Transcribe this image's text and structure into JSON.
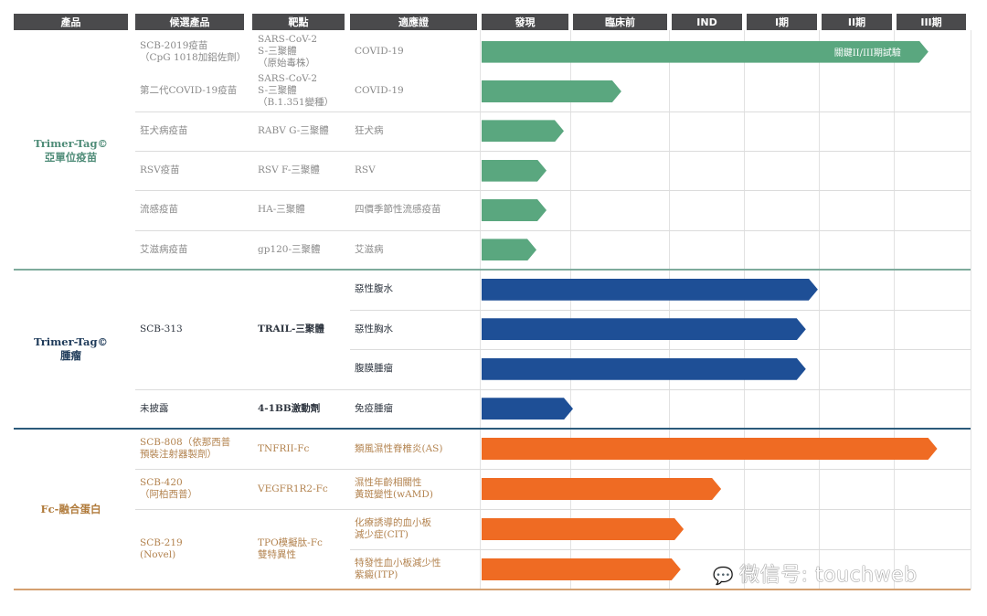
{
  "chart_data": {
    "type": "bar",
    "orientation": "horizontal",
    "headers": {
      "product": "產品",
      "candidate": "候選產品",
      "target": "靶點",
      "indication": "適應證",
      "stages": [
        "發現",
        "臨床前",
        "IND",
        "I期",
        "II期",
        "III期"
      ]
    },
    "value_unit": "stages completed (0–6)",
    "groups": [
      {
        "label": "Trimer-Tag© 亞單位疫苗",
        "label_lines": [
          "Trimer-Tag©",
          "亞單位疫苗"
        ],
        "color": "#5aa77f",
        "text_color": "#8a8a8a",
        "label_color": "#4f8c78",
        "line_color": "#7eab9c",
        "candidates": [
          {
            "name": "SCB-2019疫苗\n（CpG 1018加鋁佐劑）",
            "target": "SARS-CoV-2\nS-三聚體\n（原始毒株）",
            "indications": [
              {
                "name": "COVID-19",
                "progress": 5.43,
                "bar_label": "關鍵II/III期試驗"
              }
            ]
          },
          {
            "name": "第二代COVID-19疫苗",
            "target": "SARS-CoV-2\nS-三聚體\n（B.1.351變種）",
            "indications": [
              {
                "name": "COVID-19",
                "progress": 1.49
              }
            ]
          },
          {
            "name": "狂犬病疫苗",
            "target": "RABV G-三聚體",
            "indications": [
              {
                "name": "狂犬病",
                "progress": 0.9
              }
            ]
          },
          {
            "name": "RSV疫苗",
            "target": "RSV F-三聚體",
            "indications": [
              {
                "name": "RSV",
                "progress": 0.71
              }
            ]
          },
          {
            "name": "流感疫苗",
            "target": "HA-三聚體",
            "indications": [
              {
                "name": "四價季節性流感疫苗",
                "progress": 0.71
              }
            ]
          },
          {
            "name": "艾滋病疫苗",
            "target": "gp120-三聚體",
            "indications": [
              {
                "name": "艾滋病",
                "progress": 0.6
              }
            ]
          }
        ]
      },
      {
        "label": "Trimer-Tag© 腫瘤",
        "label_lines": [
          "Trimer-Tag©",
          "腫瘤"
        ],
        "color": "#1e4f96",
        "text_color": "#2f3640",
        "label_color": "#1f3b5a",
        "line_color": "#2b5a7a",
        "candidates": [
          {
            "name": "SCB-313",
            "target": "TRAIL-三聚體",
            "indications": [
              {
                "name": "惡性腹水",
                "progress": 3.95
              },
              {
                "name": "惡性胸水",
                "progress": 3.79
              },
              {
                "name": "腹膜腫瘤",
                "progress": 3.79
              }
            ]
          },
          {
            "name": "未披露",
            "target": "4-1BB激動劑",
            "indications": [
              {
                "name": "免疫腫瘤",
                "progress": 1.0
              }
            ]
          }
        ]
      },
      {
        "label": "Fc-融合蛋白",
        "label_lines": [
          "Fc-融合蛋白"
        ],
        "color": "#ef6b23",
        "text_color": "#b3834f",
        "label_color": "#b07a3a",
        "line_color": "#d4a070",
        "candidates": [
          {
            "name": "SCB-808（依那西普\n預裝注射器製劑）",
            "target": "TNFRII-Fc",
            "indications": [
              {
                "name": "類風濕性脊椎炎(AS)",
                "progress": 5.55
              }
            ]
          },
          {
            "name": "SCB-420\n（阿柏西普）",
            "target": "VEGFR1R2-Fc",
            "indications": [
              {
                "name": "濕性年齡相關性\n黃斑變性(wAMD)",
                "progress": 2.66
              }
            ]
          },
          {
            "name": "SCB-219\n(Novel)",
            "target": "TPO模擬肽-Fc\n雙特異性",
            "indications": [
              {
                "name": "化療誘導的血小板\n減少症(CIT)",
                "progress": 2.16
              },
              {
                "name": "特發性血小板減少性\n紫癜(ITP)",
                "progress": 2.12
              }
            ]
          }
        ]
      }
    ]
  },
  "watermark": "微信号: touchweb"
}
